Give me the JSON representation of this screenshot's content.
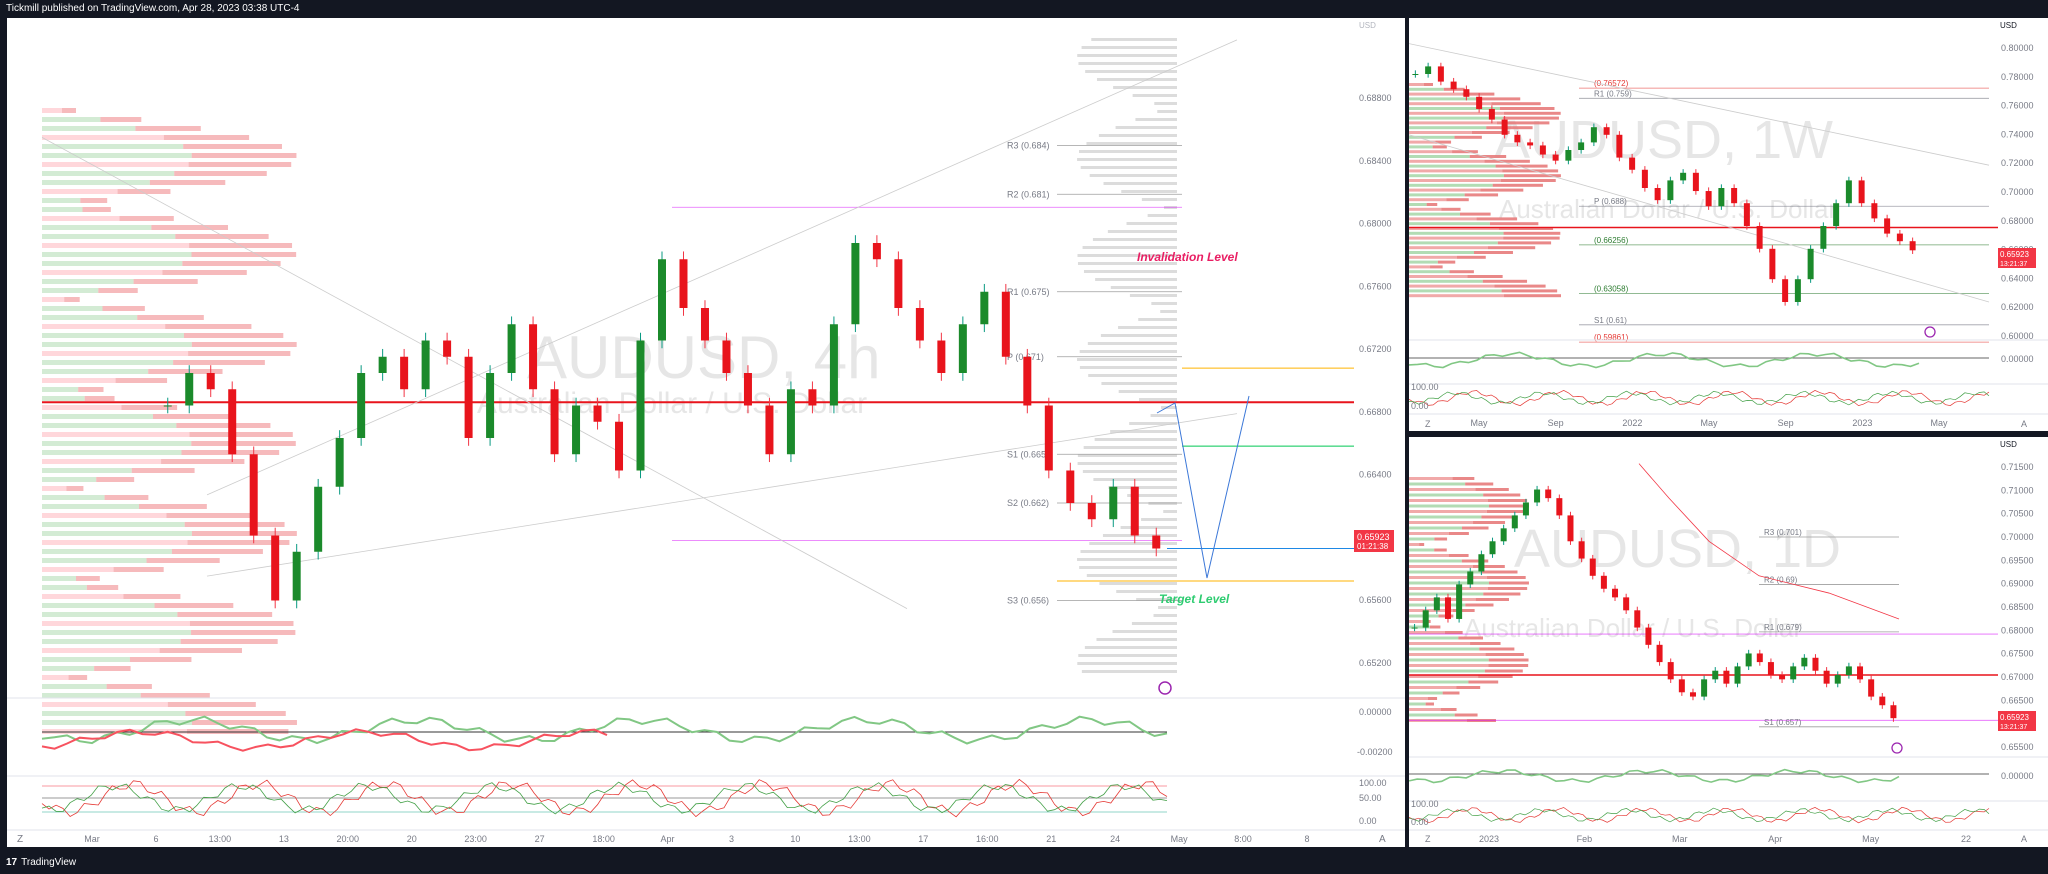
{
  "header": {
    "published": "Tickmill published on TradingView.com, Apr 28, 2023 03:38 UTC-4"
  },
  "footer": {
    "brand": "TradingView",
    "logo_text": "17"
  },
  "main": {
    "symbol": "AUDUSD, 4h",
    "watermark_desc": "Australian Dollar / U.S. Dollar",
    "price_badge": "0.65923",
    "countdown": "01:21:38",
    "invalidation": "Invalidation Level",
    "target": "Target Level",
    "pivots": [
      {
        "label": "R3 (0.684)",
        "v": 0.684
      },
      {
        "label": "R2 (0.681)",
        "v": 0.681
      },
      {
        "label": "R1 (0.675)",
        "v": 0.675
      },
      {
        "label": "P (0.671)",
        "v": 0.671
      },
      {
        "label": "S1 (0.665)",
        "v": 0.665
      },
      {
        "label": "S2 (0.662)",
        "v": 0.662
      },
      {
        "label": "S3 (0.656)",
        "v": 0.656
      }
    ],
    "price_scale": [
      "0.68800",
      "0.68400",
      "0.68000",
      "0.67600",
      "0.67200",
      "0.66800",
      "0.66400",
      "0.66000",
      "0.65600",
      "0.65200"
    ],
    "osc_scale": [
      "0.00000",
      "-0.00200"
    ],
    "rsi_scale": [
      "100.00",
      "50.00",
      "0.00"
    ],
    "time_axis": [
      "Mar",
      "6",
      "13:00",
      "13",
      "20:00",
      "20",
      "23:00",
      "27",
      "18:00",
      "Apr",
      "3",
      "10",
      "13:00",
      "17",
      "16:00",
      "21",
      "24",
      "May",
      "8:00",
      "8"
    ],
    "z_btn": "Z",
    "a_btn": "A",
    "top_scale_lbl": "USD"
  },
  "weekly": {
    "symbol": "AUDUSD, 1W",
    "watermark_desc": "Australian Dollar / U.S. Dollar",
    "currency": "USD",
    "price_badge": "0.65923",
    "countdown": "13:21:37",
    "levels": [
      {
        "label": "(0.76572)",
        "v": 0.76572,
        "color": "#e53935"
      },
      {
        "label": "R1 (0.759)",
        "v": 0.759,
        "color": "#787b86"
      },
      {
        "label": "P (0.688)",
        "v": 0.688,
        "color": "#787b86"
      },
      {
        "label": "(0.66256)",
        "v": 0.66256,
        "color": "#2e7d32"
      },
      {
        "label": "(0.63058)",
        "v": 0.63058,
        "color": "#2e7d32"
      },
      {
        "label": "S1 (0.61)",
        "v": 0.61,
        "color": "#787b86"
      },
      {
        "label": "(0.59861)",
        "v": 0.59861,
        "color": "#e53935"
      }
    ],
    "price_scale": [
      "0.80000",
      "0.78000",
      "0.76000",
      "0.74000",
      "0.72000",
      "0.70000",
      "0.68000",
      "0.66000",
      "0.64000",
      "0.62000",
      "0.60000"
    ],
    "osc_scale": [
      "0.00000"
    ],
    "rsi_scale": [
      "100.00",
      "0.00"
    ],
    "time_axis": [
      "May",
      "Sep",
      "2022",
      "May",
      "Sep",
      "2023",
      "May"
    ],
    "z_btn": "Z",
    "a_btn": "A"
  },
  "daily": {
    "symbol": "AUDUSD, 1D",
    "watermark_desc": "Australian Dollar / U.S. Dollar",
    "currency": "USD",
    "price_badge": "0.65923",
    "countdown": "13:21:37",
    "pivots": [
      {
        "label": "R3 (0.701)",
        "v": 0.701
      },
      {
        "label": "R2 (0.69)",
        "v": 0.69
      },
      {
        "label": "R1 (0.679)",
        "v": 0.679
      },
      {
        "label": "S1 (0.657)",
        "v": 0.657
      }
    ],
    "price_scale": [
      "0.71500",
      "0.71000",
      "0.70500",
      "0.70000",
      "0.69500",
      "0.69000",
      "0.68500",
      "0.68000",
      "0.67500",
      "0.67000",
      "0.66500",
      "0.66000",
      "0.65500"
    ],
    "osc_scale": [
      "0.00000"
    ],
    "rsi_scale": [
      "100.00",
      "0.00"
    ],
    "time_axis": [
      "2023",
      "Feb",
      "Mar",
      "Apr",
      "May",
      "22"
    ],
    "z_btn": "Z",
    "a_btn": "A"
  },
  "chart_data": [
    {
      "type": "candlestick",
      "title": "AUDUSD, 4h",
      "ylim": [
        0.65,
        0.69
      ],
      "last": 0.65923,
      "annotations": [
        "Invalidation Level",
        "Target Level"
      ],
      "series": [
        {
          "name": "AUDUSD 4h close",
          "values": [
            0.668,
            0.67,
            0.669,
            0.665,
            0.66,
            0.656,
            0.659,
            0.663,
            0.666,
            0.67,
            0.671,
            0.669,
            0.672,
            0.671,
            0.666,
            0.67,
            0.673,
            0.669,
            0.665,
            0.668,
            0.667,
            0.664,
            0.672,
            0.677,
            0.674,
            0.672,
            0.67,
            0.668,
            0.665,
            0.669,
            0.668,
            0.673,
            0.678,
            0.677,
            0.674,
            0.672,
            0.67,
            0.673,
            0.675,
            0.671,
            0.668,
            0.664,
            0.662,
            0.661,
            0.663,
            0.66,
            0.6592
          ]
        }
      ]
    },
    {
      "type": "candlestick",
      "title": "AUDUSD, 1W",
      "ylim": [
        0.6,
        0.8
      ],
      "last": 0.65923,
      "series": [
        {
          "name": "AUDUSD 1W close",
          "values": [
            0.775,
            0.78,
            0.77,
            0.765,
            0.76,
            0.752,
            0.745,
            0.735,
            0.73,
            0.728,
            0.722,
            0.718,
            0.725,
            0.73,
            0.74,
            0.735,
            0.72,
            0.712,
            0.7,
            0.692,
            0.705,
            0.71,
            0.698,
            0.688,
            0.7,
            0.69,
            0.675,
            0.66,
            0.64,
            0.625,
            0.64,
            0.66,
            0.675,
            0.69,
            0.705,
            0.69,
            0.68,
            0.67,
            0.665,
            0.659
          ]
        }
      ]
    },
    {
      "type": "candlestick",
      "title": "AUDUSD, 1D",
      "ylim": [
        0.65,
        0.72
      ],
      "last": 0.65923,
      "series": [
        {
          "name": "AUDUSD 1D close",
          "values": [
            0.68,
            0.684,
            0.687,
            0.682,
            0.69,
            0.693,
            0.697,
            0.7,
            0.703,
            0.706,
            0.709,
            0.712,
            0.71,
            0.706,
            0.7,
            0.696,
            0.692,
            0.689,
            0.687,
            0.684,
            0.68,
            0.676,
            0.672,
            0.668,
            0.665,
            0.664,
            0.668,
            0.67,
            0.667,
            0.671,
            0.674,
            0.672,
            0.669,
            0.668,
            0.671,
            0.673,
            0.67,
            0.667,
            0.669,
            0.671,
            0.668,
            0.664,
            0.662,
            0.659
          ]
        }
      ]
    }
  ]
}
